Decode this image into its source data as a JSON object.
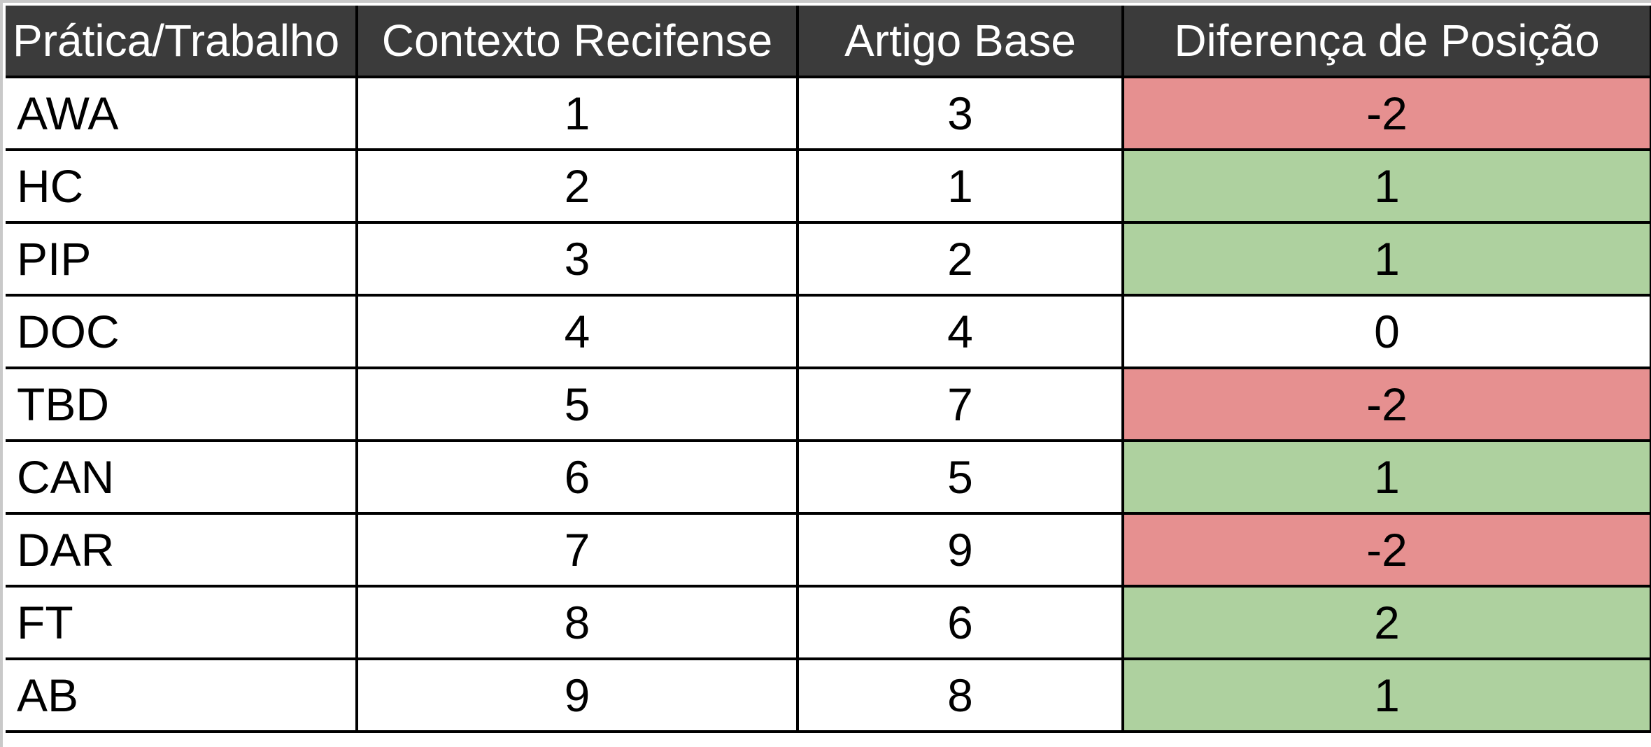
{
  "colors": {
    "header_bg": "#3b3b3b",
    "header_text": "#ffffff",
    "negative": "#e69090",
    "positive": "#aed19f",
    "neutral": "#ffffff"
  },
  "table": {
    "headers": {
      "practice": "Prática/Trabalho",
      "local": "Contexto Recifense",
      "base": "Artigo Base",
      "diff": "Diferença de Posição"
    },
    "rows": [
      {
        "practice": "AWA",
        "local": "1",
        "base": "3",
        "diff": "-2",
        "tone": "neg"
      },
      {
        "practice": "HC",
        "local": "2",
        "base": "1",
        "diff": "1",
        "tone": "pos"
      },
      {
        "practice": "PIP",
        "local": "3",
        "base": "2",
        "diff": "1",
        "tone": "pos"
      },
      {
        "practice": "DOC",
        "local": "4",
        "base": "4",
        "diff": "0",
        "tone": "zero"
      },
      {
        "practice": "TBD",
        "local": "5",
        "base": "7",
        "diff": "-2",
        "tone": "neg"
      },
      {
        "practice": "CAN",
        "local": "6",
        "base": "5",
        "diff": "1",
        "tone": "pos"
      },
      {
        "practice": "DAR",
        "local": "7",
        "base": "9",
        "diff": "-2",
        "tone": "neg"
      },
      {
        "practice": "FT",
        "local": "8",
        "base": "6",
        "diff": "2",
        "tone": "pos"
      },
      {
        "practice": "AB",
        "local": "9",
        "base": "8",
        "diff": "1",
        "tone": "pos"
      }
    ]
  }
}
